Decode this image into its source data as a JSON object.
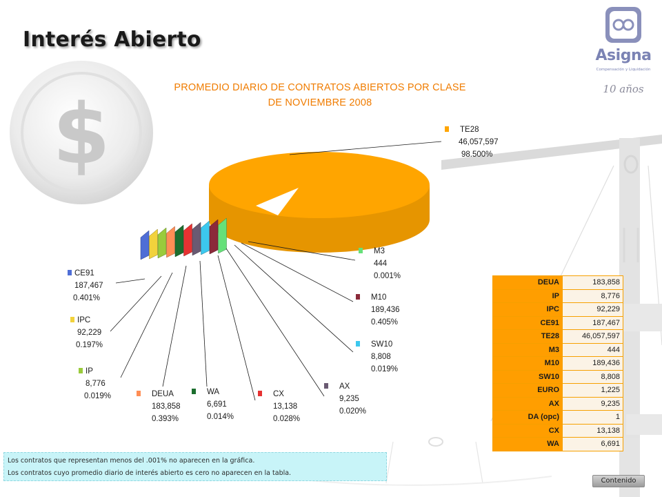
{
  "page": {
    "title": "Interés Abierto",
    "logo": {
      "name": "Asigna",
      "subtitle": "Compensación y Liquidación",
      "tagline": "10 años"
    }
  },
  "chart_data": {
    "type": "pie",
    "title": "PROMEDIO DIARIO DE CONTRATOS ABIERTOS POR CLASE",
    "subtitle": "DE NOVIEMBRE 2008",
    "categories": [
      "TE28",
      "M3",
      "M10",
      "SW10",
      "AX",
      "CX",
      "WA",
      "DEUA",
      "IP",
      "IPC",
      "CE91"
    ],
    "values": [
      46057597,
      444,
      189436,
      8808,
      9235,
      13138,
      6691,
      183858,
      8776,
      92229,
      187467
    ],
    "value_labels": [
      "46,057,597",
      "444",
      "189,436",
      "8,808",
      "9,235",
      "13,138",
      "6,691",
      "183,858",
      "8,776",
      "92,229",
      "187,467"
    ],
    "percent_labels": [
      "98.500%",
      "0.001%",
      "0.405%",
      "0.019%",
      "0.020%",
      "0.028%",
      "0.014%",
      "0.393%",
      "0.019%",
      "0.197%",
      "0.401%"
    ],
    "colors": [
      "#ffa500",
      "#66e07a",
      "#8b2a3a",
      "#3cc8ee",
      "#6a5a72",
      "#e63232",
      "#1c6e2e",
      "#ff8e55",
      "#9acb3c",
      "#f2d23c",
      "#4f6ed6"
    ],
    "style": "3d-exploded",
    "legend": "callout-labels"
  },
  "table": {
    "rows": [
      {
        "key": "DEUA",
        "value": "183,858"
      },
      {
        "key": "IP",
        "value": "8,776"
      },
      {
        "key": "IPC",
        "value": "92,229"
      },
      {
        "key": "CE91",
        "value": "187,467"
      },
      {
        "key": "TE28",
        "value": "46,057,597"
      },
      {
        "key": "M3",
        "value": "444"
      },
      {
        "key": "M10",
        "value": "189,436"
      },
      {
        "key": "SW10",
        "value": "8,808"
      },
      {
        "key": "EURO",
        "value": "1,225"
      },
      {
        "key": "AX",
        "value": "9,235"
      },
      {
        "key": "DA (opc)",
        "value": "1"
      },
      {
        "key": "CX",
        "value": "13,138"
      },
      {
        "key": "WA",
        "value": "6,691"
      }
    ]
  },
  "notes": {
    "line1": "Los contratos que representan menos del .001% no aparecen en la gráfica.",
    "line2": "Los contratos cuyo promedio diario de interés abierto es cero no aparecen en la tabla."
  },
  "nav": {
    "contenido_label": "Contenido"
  }
}
